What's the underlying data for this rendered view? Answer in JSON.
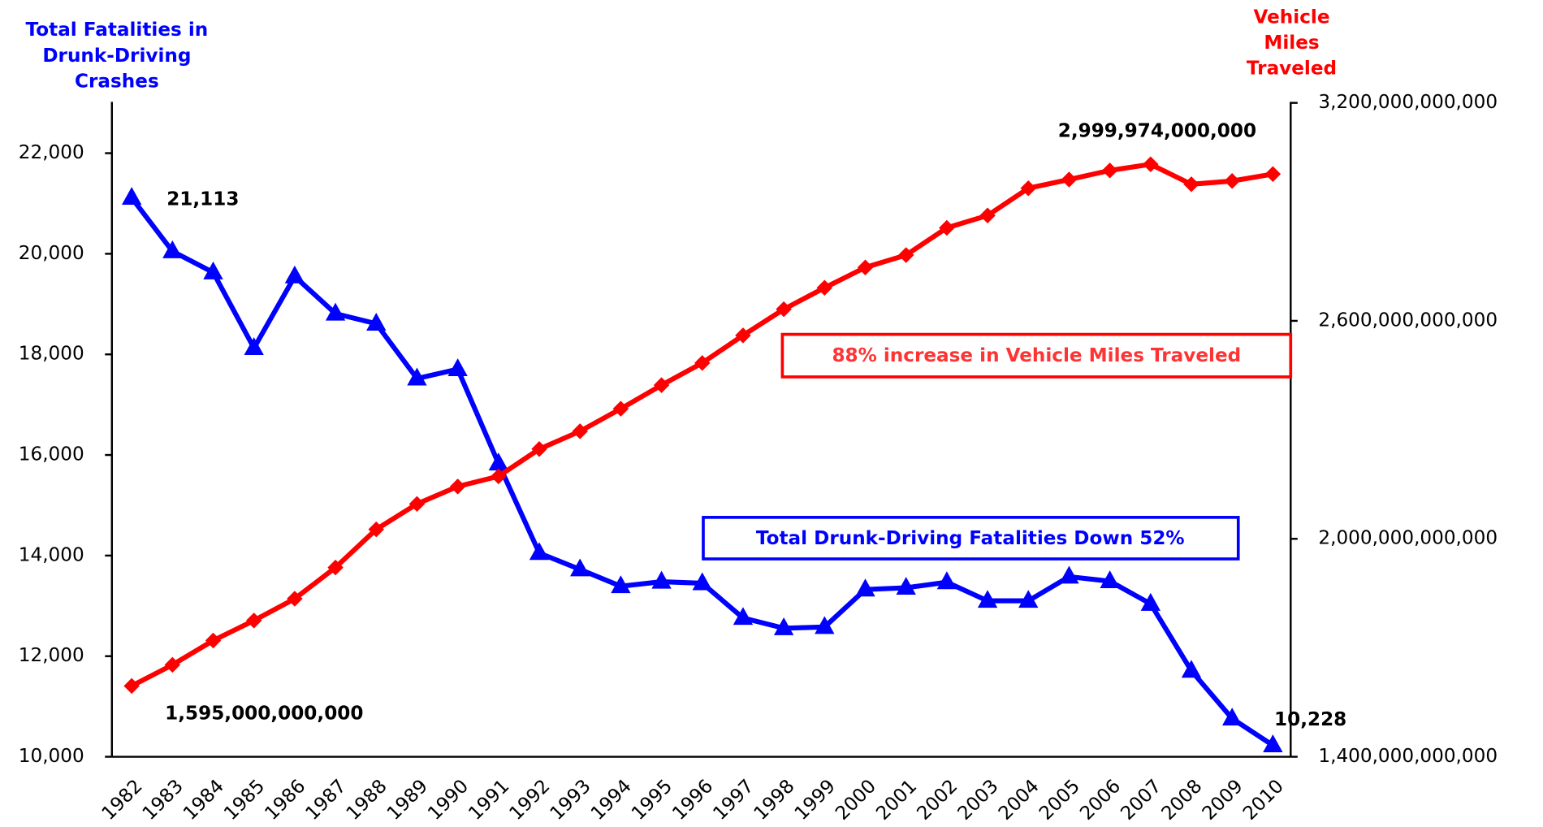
{
  "chart_data": {
    "type": "line",
    "y_label": [
      "Total Fatalities in",
      "Drunk-Driving",
      "Crashes"
    ],
    "y2_label": [
      "Vehicle",
      "Miles",
      "Traveled"
    ],
    "categories": [
      "1982",
      "1983",
      "1984",
      "1985",
      "1986",
      "1987",
      "1988",
      "1989",
      "1990",
      "1991",
      "1992",
      "1993",
      "1994",
      "1995",
      "1996",
      "1997",
      "1998",
      "1999",
      "2000",
      "2001",
      "2002",
      "2003",
      "2004",
      "2005",
      "2006",
      "2007",
      "2008",
      "2009",
      "2010"
    ],
    "ylim": [
      10000,
      23000
    ],
    "yticks": [
      {
        "value": 10000,
        "label": "10,000"
      },
      {
        "value": 12000,
        "label": "12,000"
      },
      {
        "value": 14000,
        "label": "14,000"
      },
      {
        "value": 16000,
        "label": "16,000"
      },
      {
        "value": 18000,
        "label": "18,000"
      },
      {
        "value": 20000,
        "label": "20,000"
      },
      {
        "value": 22000,
        "label": "22,000"
      }
    ],
    "y2lim": [
      1400000000000,
      3200000000000
    ],
    "y2ticks": [
      {
        "value": 1400000000000,
        "label": "1,400,000,000,000"
      },
      {
        "value": 2000000000000,
        "label": "2,000,000,000,000"
      },
      {
        "value": 2600000000000,
        "label": "2,600,000,000,000"
      },
      {
        "value": 3200000000000,
        "label": "3,200,000,000,000"
      }
    ],
    "series": [
      {
        "color": "#0000ff",
        "marker": "triangle",
        "axis": "y",
        "values": [
          21113,
          20050,
          19630,
          18125,
          19550,
          18810,
          18610,
          17520,
          17705,
          15830,
          14050,
          13725,
          13390,
          13480,
          13450,
          12760,
          12555,
          12580,
          13325,
          13360,
          13470,
          13100,
          13100,
          13580,
          13490,
          13040,
          11710,
          10760,
          10228
        ],
        "value_labels": [
          "21,113",
          null,
          null,
          null,
          null,
          null,
          null,
          null,
          null,
          null,
          null,
          null,
          null,
          null,
          null,
          null,
          null,
          null,
          null,
          null,
          null,
          null,
          null,
          null,
          null,
          null,
          null,
          null,
          "10,228"
        ]
      },
      {
        "color": "#ff0000",
        "marker": "diamond",
        "axis": "y2",
        "values": [
          1595000000000,
          1653000000000,
          1720000000000,
          1775000000000,
          1835000000000,
          1921000000000,
          2026000000000,
          2096000000000,
          2144000000000,
          2172000000000,
          2247000000000,
          2296000000000,
          2358000000000,
          2423000000000,
          2484000000000,
          2560000000000,
          2632000000000,
          2691000000000,
          2747000000000,
          2781000000000,
          2856000000000,
          2890000000000,
          2965000000000,
          2989000000000,
          3014000000000,
          3031000000000,
          2976000000000,
          2985000000000,
          3004000000000
        ],
        "value_labels": [
          "1,595,000,000,000",
          null,
          null,
          null,
          null,
          null,
          null,
          null,
          null,
          null,
          null,
          null,
          null,
          null,
          null,
          null,
          null,
          null,
          null,
          null,
          null,
          null,
          null,
          null,
          null,
          null,
          null,
          null,
          null
        ]
      }
    ],
    "annotations": [
      {
        "text": "2,999,974,000,000",
        "color": "#000000"
      },
      {
        "text": "88% increase in Vehicle Miles Traveled",
        "color": "#ff3333"
      },
      {
        "text": "Total Drunk-Driving Fatalities Down 52%",
        "color": "#0000ff"
      }
    ]
  }
}
